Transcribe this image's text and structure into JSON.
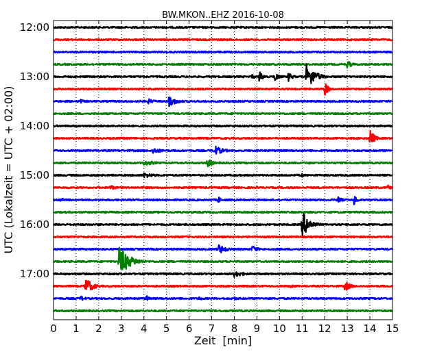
{
  "chart_data": {
    "type": "line",
    "title": "BW.MKON..EHZ 2016-10-08",
    "xlabel": "Zeit  [min]",
    "ylabel": "UTC (Lokalzeit = UTC + 02:00)",
    "xlim": [
      0,
      15
    ],
    "x_ticks": [
      "0",
      "1",
      "2",
      "3",
      "4",
      "5",
      "6",
      "7",
      "8",
      "9",
      "10",
      "11",
      "12",
      "13",
      "14",
      "15"
    ],
    "y_start_label": "12:00",
    "row_minutes": 15,
    "y_ticks": [
      {
        "label": "12:00",
        "row": 0
      },
      {
        "label": "13:00",
        "row": 4
      },
      {
        "label": "14:00",
        "row": 8
      },
      {
        "label": "15:00",
        "row": 12
      },
      {
        "label": "16:00",
        "row": 16
      },
      {
        "label": "17:00",
        "row": 20
      }
    ],
    "grid": "vertical dotted at each minute",
    "colors": [
      "#000000",
      "#ff0000",
      "#0000ff",
      "#008000"
    ],
    "traces": [
      {
        "start": "12:00",
        "color": "#000000",
        "events": []
      },
      {
        "start": "12:15",
        "color": "#ff0000",
        "events": []
      },
      {
        "start": "12:30",
        "color": "#0000ff",
        "events": []
      },
      {
        "start": "12:45",
        "color": "#008000",
        "events": [
          {
            "t": 13.0,
            "amp": 0.6,
            "dur": 0.5
          }
        ]
      },
      {
        "start": "13:00",
        "color": "#000000",
        "events": [
          {
            "t": 8.8,
            "amp": 0.5,
            "dur": 0.2
          },
          {
            "t": 9.1,
            "amp": 0.8,
            "dur": 0.4
          },
          {
            "t": 9.8,
            "amp": 0.7,
            "dur": 0.4
          },
          {
            "t": 10.4,
            "amp": 0.7,
            "dur": 0.4
          },
          {
            "t": 11.2,
            "amp": 1.9,
            "dur": 0.8
          }
        ]
      },
      {
        "start": "13:15",
        "color": "#ff0000",
        "events": [
          {
            "t": 12.0,
            "amp": 1.0,
            "dur": 0.4
          }
        ]
      },
      {
        "start": "13:30",
        "color": "#0000ff",
        "events": [
          {
            "t": 1.2,
            "amp": 0.3,
            "dur": 0.4
          },
          {
            "t": 4.2,
            "amp": 0.4,
            "dur": 0.6
          },
          {
            "t": 5.1,
            "amp": 0.8,
            "dur": 0.8
          }
        ]
      },
      {
        "start": "13:45",
        "color": "#008000",
        "events": []
      },
      {
        "start": "14:00",
        "color": "#000000",
        "events": [
          {
            "t": 2.1,
            "amp": 0.2,
            "dur": 0.2
          }
        ]
      },
      {
        "start": "14:15",
        "color": "#ff0000",
        "events": [
          {
            "t": 14.0,
            "amp": 1.4,
            "dur": 0.4
          }
        ]
      },
      {
        "start": "14:30",
        "color": "#0000ff",
        "events": [
          {
            "t": 4.4,
            "amp": 0.5,
            "dur": 0.8
          },
          {
            "t": 7.1,
            "amp": 0.8,
            "dur": 0.8
          }
        ]
      },
      {
        "start": "14:45",
        "color": "#008000",
        "events": [
          {
            "t": 4.0,
            "amp": 0.4,
            "dur": 1.2
          },
          {
            "t": 6.8,
            "amp": 0.7,
            "dur": 0.5
          },
          {
            "t": 11.3,
            "amp": 0.3,
            "dur": 0.1
          }
        ]
      },
      {
        "start": "15:00",
        "color": "#000000",
        "events": [
          {
            "t": 4.0,
            "amp": 0.4,
            "dur": 1.2
          },
          {
            "t": 11.0,
            "amp": 0.5,
            "dur": 0.1
          }
        ]
      },
      {
        "start": "15:15",
        "color": "#ff0000",
        "events": [
          {
            "t": 2.5,
            "amp": 0.4,
            "dur": 0.6
          },
          {
            "t": 14.8,
            "amp": 0.4,
            "dur": 0.4
          }
        ]
      },
      {
        "start": "15:30",
        "color": "#0000ff",
        "events": [
          {
            "t": 0.3,
            "amp": 0.3,
            "dur": 0.5
          },
          {
            "t": 7.3,
            "amp": 0.5,
            "dur": 0.3
          },
          {
            "t": 12.6,
            "amp": 0.5,
            "dur": 0.4
          },
          {
            "t": 13.3,
            "amp": 0.8,
            "dur": 0.3
          }
        ]
      },
      {
        "start": "15:45",
        "color": "#008000",
        "events": []
      },
      {
        "start": "16:00",
        "color": "#000000",
        "events": [
          {
            "t": 11.0,
            "amp": 2.0,
            "dur": 0.7
          }
        ]
      },
      {
        "start": "16:15",
        "color": "#ff0000",
        "events": []
      },
      {
        "start": "16:30",
        "color": "#0000ff",
        "events": [
          {
            "t": 7.3,
            "amp": 0.7,
            "dur": 0.8
          },
          {
            "t": 8.8,
            "amp": 0.6,
            "dur": 0.5
          }
        ]
      },
      {
        "start": "16:45",
        "color": "#008000",
        "events": [
          {
            "t": 2.9,
            "amp": 2.2,
            "dur": 1.0
          },
          {
            "t": 12.9,
            "amp": 0.3,
            "dur": 0.3
          }
        ]
      },
      {
        "start": "17:00",
        "color": "#000000",
        "events": [
          {
            "t": 8.0,
            "amp": 0.5,
            "dur": 1.0
          }
        ]
      },
      {
        "start": "17:15",
        "color": "#ff0000",
        "events": [
          {
            "t": 1.4,
            "amp": 1.3,
            "dur": 0.7
          },
          {
            "t": 10.5,
            "amp": 0.3,
            "dur": 0.5
          },
          {
            "t": 12.9,
            "amp": 0.8,
            "dur": 0.5
          }
        ]
      },
      {
        "start": "17:30",
        "color": "#0000ff",
        "events": [
          {
            "t": 1.2,
            "amp": 0.4,
            "dur": 0.5
          },
          {
            "t": 4.1,
            "amp": 0.5,
            "dur": 0.3
          },
          {
            "t": 6.4,
            "amp": 0.4,
            "dur": 0.4
          },
          {
            "t": 8.0,
            "amp": 0.3,
            "dur": 0.3
          }
        ]
      },
      {
        "start": "17:45",
        "color": "#008000",
        "events": []
      }
    ]
  }
}
